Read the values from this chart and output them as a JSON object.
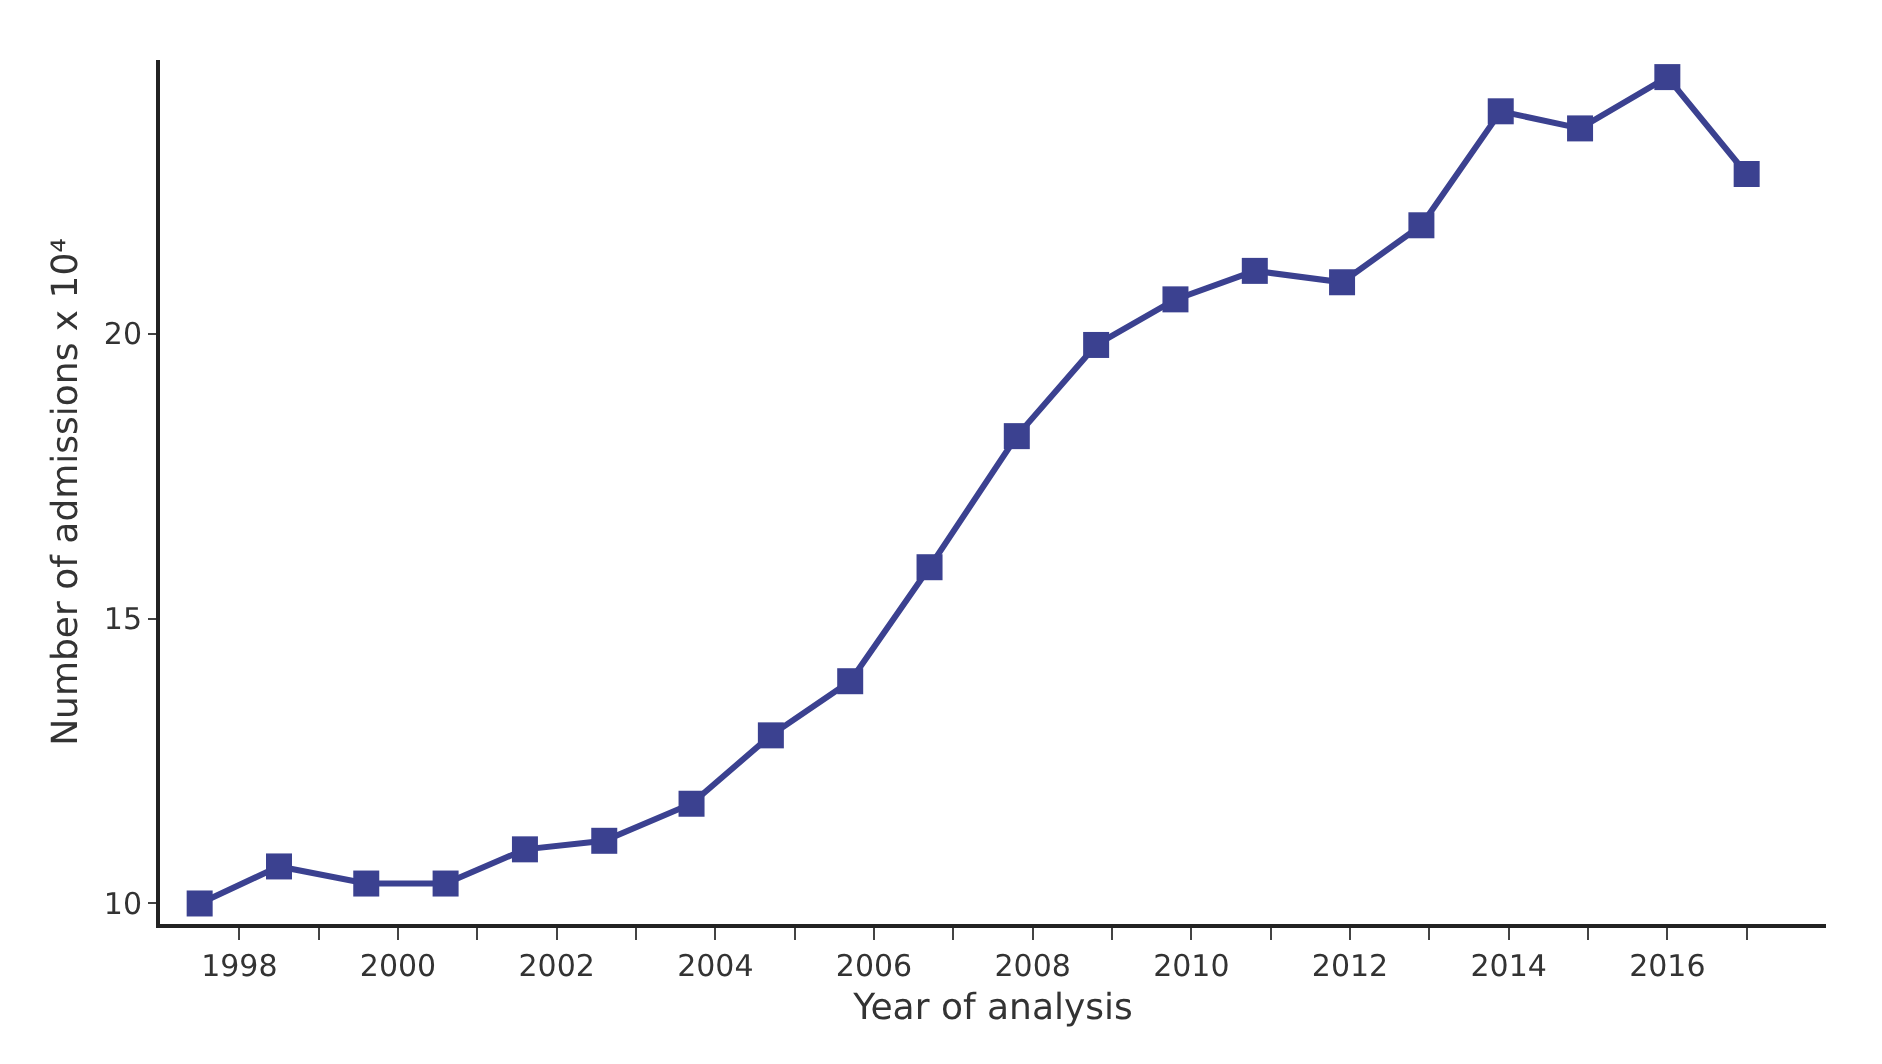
{
  "chart_data": {
    "type": "line",
    "xlabel": "Year of analysis",
    "ylabel": "Number of admissions x 10⁴",
    "x": [
      1997.5,
      1998.5,
      1999.6,
      2000.6,
      2001.6,
      2002.6,
      2003.7,
      2004.7,
      2005.7,
      2006.7,
      2007.8,
      2008.8,
      2009.8,
      2010.8,
      2011.9,
      2012.9,
      2013.9,
      2014.9,
      2016.0,
      2017.0
    ],
    "series": [
      {
        "color": "#3b4190",
        "values": [
          10.0,
          10.65,
          10.35,
          10.35,
          10.95,
          11.1,
          11.75,
          12.95,
          13.9,
          15.9,
          18.2,
          19.8,
          20.6,
          21.1,
          20.9,
          21.9,
          23.9,
          23.6,
          24.5,
          22.8
        ]
      }
    ],
    "xlim": [
      1997.0,
      2018.0
    ],
    "ylim": [
      9.64,
      24.8
    ],
    "xticks": [
      1998,
      {
        "value": 1999,
        "label": null
      },
      2000,
      {
        "value": 2001,
        "label": null
      },
      2002,
      {
        "value": 2003,
        "label": null
      },
      2004,
      {
        "value": 2005,
        "label": null
      },
      2006,
      {
        "value": 2007,
        "label": null
      },
      2008,
      {
        "value": 2009,
        "label": null
      },
      2010,
      {
        "value": 2011,
        "label": null
      },
      2012,
      {
        "value": 2013,
        "label": null
      },
      2014,
      {
        "value": 2015,
        "label": null
      },
      2016,
      {
        "value": 2017,
        "label": null
      }
    ],
    "yticks": [
      10,
      15,
      20
    ],
    "marker": "square",
    "line_style": "solid"
  }
}
